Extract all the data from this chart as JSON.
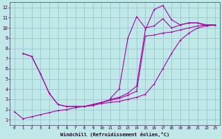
{
  "xlabel": "Windchill (Refroidissement éolien,°C)",
  "bg_color": "#c0e8e8",
  "grid_color": "#90c0c8",
  "line_color": "#aa00aa",
  "xlim": [
    -0.5,
    23.5
  ],
  "ylim": [
    0.5,
    12.5
  ],
  "xticks": [
    0,
    1,
    2,
    3,
    4,
    5,
    6,
    7,
    8,
    9,
    10,
    11,
    12,
    13,
    14,
    15,
    16,
    17,
    18,
    19,
    20,
    21,
    22,
    23
  ],
  "yticks": [
    1,
    2,
    3,
    4,
    5,
    6,
    7,
    8,
    9,
    10,
    11,
    12
  ],
  "curve1_x": [
    0,
    1,
    2,
    3,
    4,
    5,
    6,
    7,
    8,
    9,
    10,
    11,
    12,
    13,
    14,
    15,
    16,
    17,
    18,
    19,
    20,
    21,
    22,
    23
  ],
  "curve1_y": [
    1.8,
    1.1,
    1.3,
    1.5,
    1.7,
    1.9,
    2.0,
    2.2,
    2.3,
    2.4,
    2.6,
    2.7,
    2.8,
    3.0,
    3.2,
    3.5,
    4.5,
    6.0,
    7.5,
    8.8,
    9.5,
    10.0,
    10.2,
    10.3
  ],
  "curve2_x": [
    1,
    2,
    3,
    4,
    5,
    6,
    7,
    8,
    9,
    10,
    11,
    12,
    13,
    14,
    15,
    16,
    17,
    18,
    19,
    20,
    21,
    22,
    23
  ],
  "curve2_y": [
    7.5,
    7.2,
    5.5,
    3.6,
    2.5,
    2.3,
    2.3,
    2.3,
    2.5,
    2.7,
    2.9,
    3.1,
    3.4,
    3.8,
    9.2,
    9.3,
    9.5,
    9.6,
    9.8,
    10.0,
    10.2,
    10.3,
    10.3
  ],
  "curve3_x": [
    1,
    2,
    3,
    4,
    5,
    6,
    7,
    8,
    9,
    10,
    11,
    12,
    13,
    14,
    15,
    16,
    17,
    18,
    19,
    20,
    21,
    22,
    23
  ],
  "curve3_y": [
    7.5,
    7.2,
    5.5,
    3.6,
    2.5,
    2.3,
    2.3,
    2.3,
    2.5,
    2.7,
    3.0,
    3.2,
    3.6,
    4.3,
    9.8,
    11.8,
    12.2,
    10.8,
    10.3,
    10.5,
    10.5,
    10.3,
    10.3
  ],
  "curve4_x": [
    11,
    12,
    13,
    14,
    15,
    16,
    17,
    18,
    19,
    20,
    21,
    22,
    23
  ],
  "curve4_y": [
    3.1,
    4.0,
    9.0,
    11.1,
    10.0,
    10.2,
    10.9,
    10.0,
    10.3,
    10.5,
    10.5,
    10.2,
    10.3
  ]
}
